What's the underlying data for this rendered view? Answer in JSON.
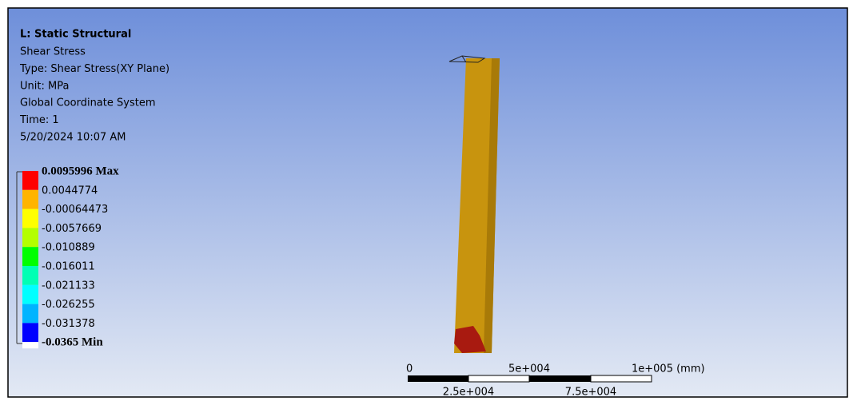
{
  "header": {
    "title": "L: Static Structural",
    "lines": [
      "Shear Stress",
      "Type: Shear Stress(XY Plane)",
      "Unit: MPa",
      "Global Coordinate System",
      "Time: 1",
      "5/20/2024 10:07 AM"
    ]
  },
  "legend": {
    "labels": [
      "0.0095996 Max",
      "0.0044774",
      "-0.00064473",
      "-0.0057669",
      "-0.010889",
      "-0.016011",
      "-0.021133",
      "-0.026255",
      "-0.031378",
      "-0.0365 Min"
    ]
  },
  "scale_bar": {
    "top_labels": [
      "0",
      "5e+004",
      "1e+005 (mm)"
    ],
    "bottom_labels": [
      "2.5e+004",
      "7.5e+004"
    ]
  }
}
